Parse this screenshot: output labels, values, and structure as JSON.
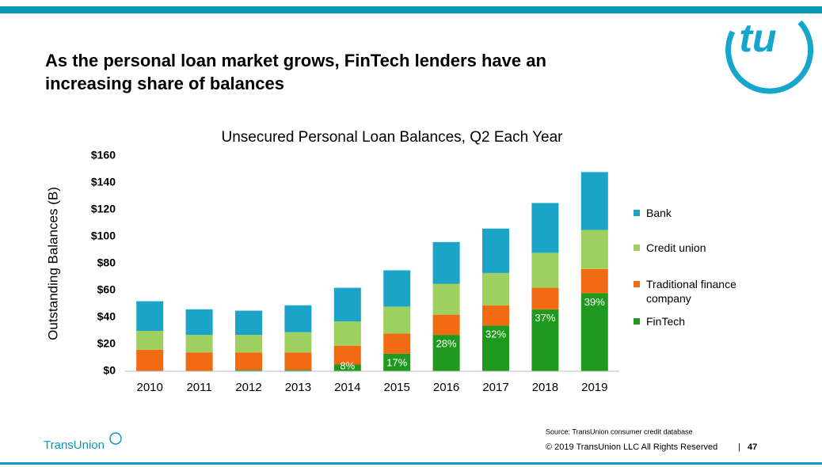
{
  "header": {
    "title_line1": "As the personal loan market grows, FinTech lenders have an",
    "title_line2": "increasing share of balances",
    "logo": "tu"
  },
  "chart_data": {
    "type": "stacked_bar",
    "title": "Unsecured Personal Loan Balances, Q2 Each Year",
    "y_label": "Outstanding Balances (B)",
    "categories": [
      "2010",
      "2011",
      "2012",
      "2013",
      "2014",
      "2015",
      "2016",
      "2017",
      "2018",
      "2019"
    ],
    "series": [
      {
        "name": "Bank",
        "color": "#1ba3c8",
        "values": [
          22,
          19,
          18,
          20,
          25,
          27,
          31,
          33,
          37,
          43
        ]
      },
      {
        "name": "Credit union",
        "color": "#9dd05e",
        "values": [
          14,
          13,
          13,
          15,
          18,
          20,
          23,
          24,
          26,
          29
        ]
      },
      {
        "name": "Traditional finance company",
        "color": "#f26b12",
        "values": [
          16,
          14,
          13,
          13,
          14,
          15,
          15,
          15,
          16,
          18
        ]
      },
      {
        "name": "FinTech",
        "color": "#1f9a1f",
        "values": [
          0,
          0,
          1,
          1,
          5,
          13,
          27,
          34,
          46,
          58
        ]
      }
    ],
    "fintech_share": {
      "values": [
        null,
        null,
        null,
        null,
        8,
        17,
        28,
        32,
        37,
        39
      ],
      "value_labels": [
        null,
        null,
        null,
        null,
        "8%",
        "17%",
        "28%",
        "32%",
        "37%",
        "39%"
      ]
    },
    "ylim": [
      0,
      160
    ],
    "yticks": [
      {
        "value": 0,
        "label": "$0"
      },
      {
        "value": 20,
        "label": "$20"
      },
      {
        "value": 40,
        "label": "$40"
      },
      {
        "value": 60,
        "label": "$60"
      },
      {
        "value": 80,
        "label": "$80"
      },
      {
        "value": 100,
        "label": "$100"
      },
      {
        "value": 120,
        "label": "$120"
      },
      {
        "value": 140,
        "label": "$140"
      },
      {
        "value": 160,
        "label": "$160"
      }
    ],
    "legend": "right"
  },
  "footer": {
    "brand": "TransUnion",
    "source": "Source: TransUnion consumer credit database",
    "copyright": "© 2019 TransUnion LLC All Rights Reserved",
    "page": "47"
  }
}
